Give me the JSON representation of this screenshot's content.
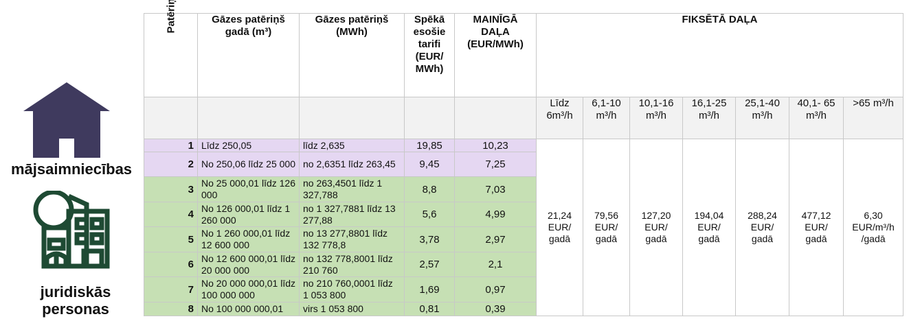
{
  "left_labels": {
    "households": "mājsaimniecības",
    "legal_persons_line1": "juridiskās",
    "legal_persons_line2": "personas"
  },
  "headers": {
    "group_no": "Patēriņa grupas Nr.",
    "annual_m3": "Gāzes patēriņš gadā (m³)",
    "annual_mwh": "Gāzes patēriņš (MWh)",
    "tariffs": "Spēkā esošie tarifi (EUR/ MWh)",
    "variable": "MAINĪGĀ DAĻA (EUR/MWh)",
    "fixed": "FIKSĒTĀ DAĻA"
  },
  "fixed_buckets": [
    {
      "label": "Līdz 6m³/h",
      "value": "21,24 EUR/ gadā"
    },
    {
      "label": "6,1-10 m³/h",
      "value": "79,56 EUR/ gadā"
    },
    {
      "label": "10,1-16 m³/h",
      "value": "127,20 EUR/ gadā"
    },
    {
      "label": "16,1-25 m³/h",
      "value": "194,04 EUR/ gadā"
    },
    {
      "label": "25,1-40 m³/h",
      "value": "288,24 EUR/ gadā"
    },
    {
      "label": "40,1- 65 m³/h",
      "value": "477,12 EUR/ gadā"
    },
    {
      "label": ">65 m³/h",
      "value": "6,30 EUR/m³/h /gadā"
    }
  ],
  "rows": [
    {
      "no": "1",
      "m3": "Līdz 250,05",
      "mwh": "līdz 2,635",
      "tariff": "19,85",
      "variable": "10,23"
    },
    {
      "no": "2",
      "m3": "No 250,06 līdz 25 000",
      "mwh": "no 2,6351 līdz 263,45",
      "tariff": "9,45",
      "variable": "7,25"
    },
    {
      "no": "3",
      "m3": "No 25 000,01 līdz 126 000",
      "mwh": "no 263,4501 līdz 1 327,788",
      "tariff": "8,8",
      "variable": "7,03"
    },
    {
      "no": "4",
      "m3": "No 126 000,01 līdz 1 260 000",
      "mwh": "no 1 327,7881 līdz 13 277,88",
      "tariff": "5,6",
      "variable": "4,99"
    },
    {
      "no": "5",
      "m3": "No 1 260 000,01 līdz 12 600 000",
      "mwh": "no 13 277,8801 līdz 132 778,8",
      "tariff": "3,78",
      "variable": "2,97"
    },
    {
      "no": "6",
      "m3": "No 12 600 000,01 līdz  20 000 000",
      "mwh": "no 132 778,8001 līdz 210 760",
      "tariff": "2,57",
      "variable": "2,1"
    },
    {
      "no": "7",
      "m3": "No 20 000 000,01 līdz 100 000 000",
      "mwh": "no 210 760,0001 līdz 1 053 800",
      "tariff": "1,69",
      "variable": "0,97"
    },
    {
      "no": "8",
      "m3": "No 100 000 000,01",
      "mwh": "virs 1 053 800",
      "tariff": "0,81",
      "variable": "0,39"
    }
  ],
  "colors": {
    "households_row": "#e5d7f2",
    "legal_row": "#c6e0b4",
    "house_icon": "#3f3a5e",
    "building_icon": "#1e4a33"
  }
}
